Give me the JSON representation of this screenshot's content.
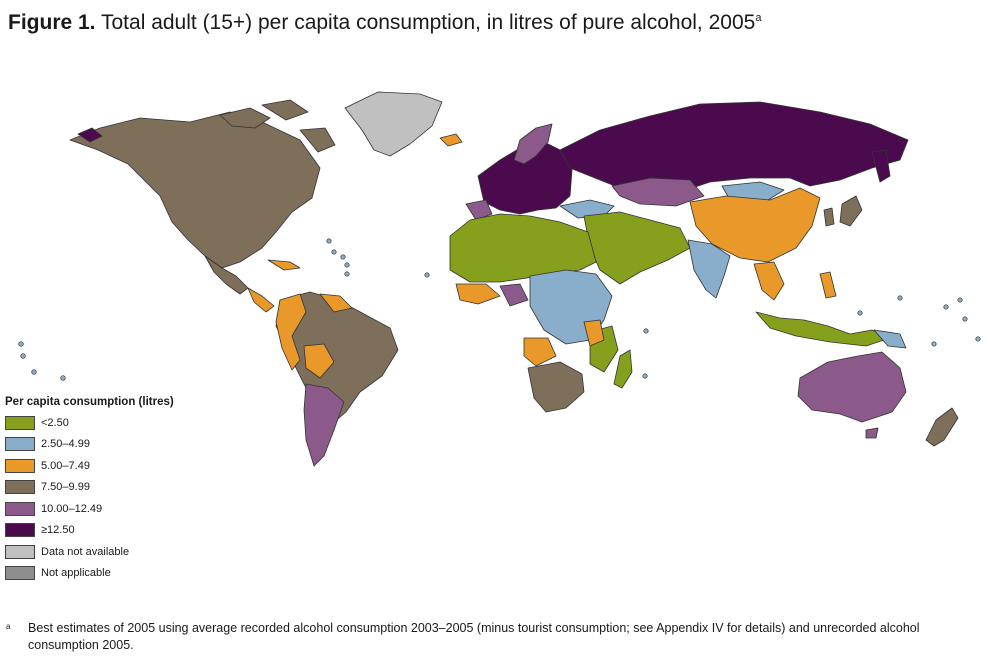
{
  "figure": {
    "label": "Figure 1.",
    "title": "Total adult (15+) per capita consumption, in litres of pure alcohol, 2005",
    "title_sup": "a"
  },
  "legend": {
    "title": "Per capita consumption (litres)",
    "items": [
      {
        "label": "<2.50",
        "color": "#86a01e"
      },
      {
        "label": "2.50–4.99",
        "color": "#88aecb"
      },
      {
        "label": "5.00–7.49",
        "color": "#e9992a"
      },
      {
        "label": "7.50–9.99",
        "color": "#7e6f5a"
      },
      {
        "label": "10.00–12.49",
        "color": "#8b5a8a"
      },
      {
        "label": "≥12.50",
        "color": "#4b0a4e"
      },
      {
        "label": "Data not available",
        "color": "#c0c0c0"
      },
      {
        "label": "Not applicable",
        "color": "#8e8e8e"
      }
    ]
  },
  "footnote": {
    "marker": "a",
    "text": "Best estimates of 2005 using average recorded alcohol consumption 2003–2005 (minus tourist consumption; see Appendix IV for details) and unrecorded alcohol consumption 2005."
  }
}
